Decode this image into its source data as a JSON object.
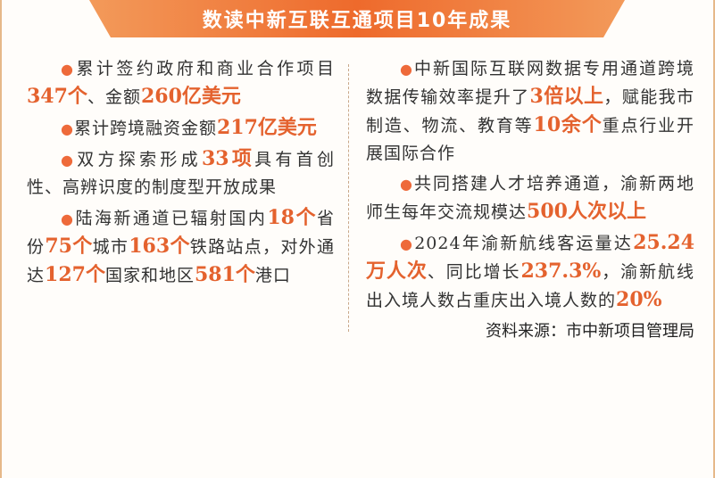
{
  "title": "数读中新互联互通项目10年成果",
  "colors": {
    "accent": "#e4622e",
    "banner": "#ee6a2c"
  },
  "left_items": [
    [
      {
        "t": "累计签约政府和商业合作项目"
      },
      {
        "t": "347个",
        "h": true
      },
      {
        "t": "、金额"
      },
      {
        "t": "260亿美元",
        "h": true
      }
    ],
    [
      {
        "t": "累计跨境融资金额"
      },
      {
        "t": "217亿美元",
        "h": true
      }
    ],
    [
      {
        "t": "双方探索形成"
      },
      {
        "t": "33项",
        "h": true
      },
      {
        "t": "具有首创性、高辨识度的制度型开放成果"
      }
    ],
    [
      {
        "t": "陆海新通道已辐射国内"
      },
      {
        "t": "18个",
        "h": true
      },
      {
        "t": "省份"
      },
      {
        "t": "75个",
        "h": true
      },
      {
        "t": "城市"
      },
      {
        "t": "163个",
        "h": true
      },
      {
        "t": "铁路站点，对外通达"
      },
      {
        "t": "127个",
        "h": true
      },
      {
        "t": "国家和地区"
      },
      {
        "t": "581个",
        "h": true
      },
      {
        "t": "港口"
      }
    ]
  ],
  "right_items": [
    [
      {
        "t": "中新国际互联网数据专用通道跨境数据传输效率提升了"
      },
      {
        "t": "3倍以上",
        "h": true
      },
      {
        "t": "，赋能我市制造、物流、教育等"
      },
      {
        "t": "10余个",
        "h": true
      },
      {
        "t": "重点行业开展国际合作"
      }
    ],
    [
      {
        "t": "共同搭建人才培养通道，渝新两地师生每年交流规模达"
      },
      {
        "t": "500人次以上",
        "h": true
      }
    ],
    [
      {
        "t": "2024年渝新航线客运量达"
      },
      {
        "t": "25.24万人次",
        "h": true
      },
      {
        "t": "、同比增长"
      },
      {
        "t": "237.3%",
        "h": true
      },
      {
        "t": "，渝新航线出入境人数占重庆出入境人数的"
      },
      {
        "t": "20%",
        "h": true
      }
    ]
  ],
  "source": "资料来源：市中新项目管理局"
}
